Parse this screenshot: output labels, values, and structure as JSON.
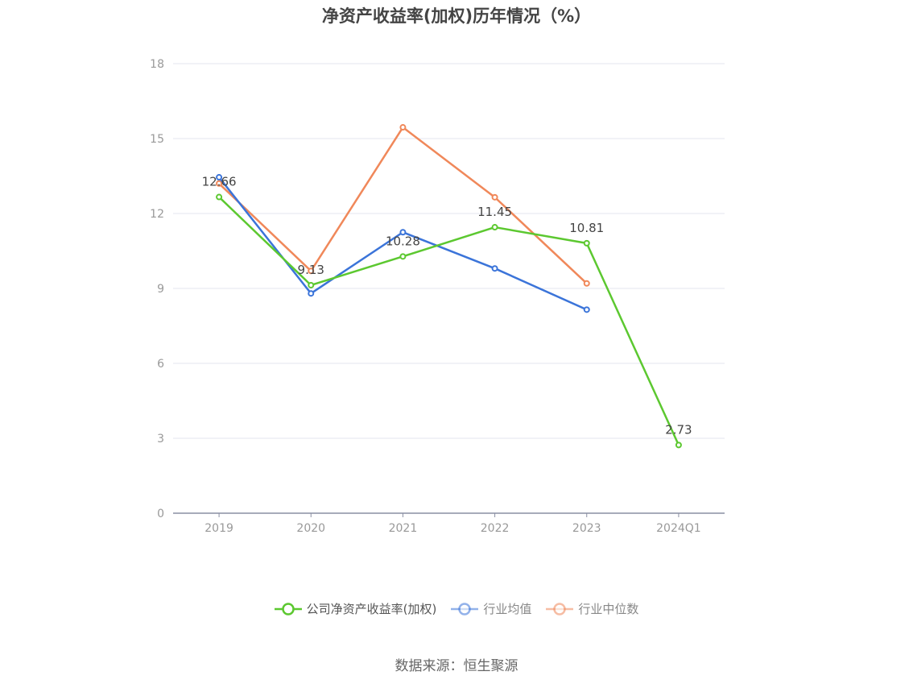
{
  "title": "净资产收益率(加权)历年情况（%）",
  "source": "数据来源：恒生聚源",
  "chart_data": {
    "type": "line",
    "title": "净资产收益率(加权)历年情况（%）",
    "xlabel": "",
    "ylabel": "",
    "categories": [
      "2019",
      "2020",
      "2021",
      "2022",
      "2023",
      "2024Q1"
    ],
    "ylim": [
      0,
      18
    ],
    "yticks": [
      0,
      3,
      6,
      9,
      12,
      15,
      18
    ],
    "grid": true,
    "legend": "bottom",
    "series": [
      {
        "name": "公司净资产收益率(加权)",
        "color": "#5cc830",
        "values": [
          12.66,
          9.13,
          10.28,
          11.45,
          10.81,
          2.73
        ],
        "labels": true
      },
      {
        "name": "行业均值",
        "color": "#3b74d9",
        "values": [
          13.45,
          8.8,
          11.25,
          9.8,
          8.15,
          null
        ],
        "labels": false
      },
      {
        "name": "行业中位数",
        "color": "#f0885a",
        "values": [
          13.2,
          9.7,
          15.45,
          12.65,
          9.2,
          null
        ],
        "labels": false
      }
    ]
  }
}
